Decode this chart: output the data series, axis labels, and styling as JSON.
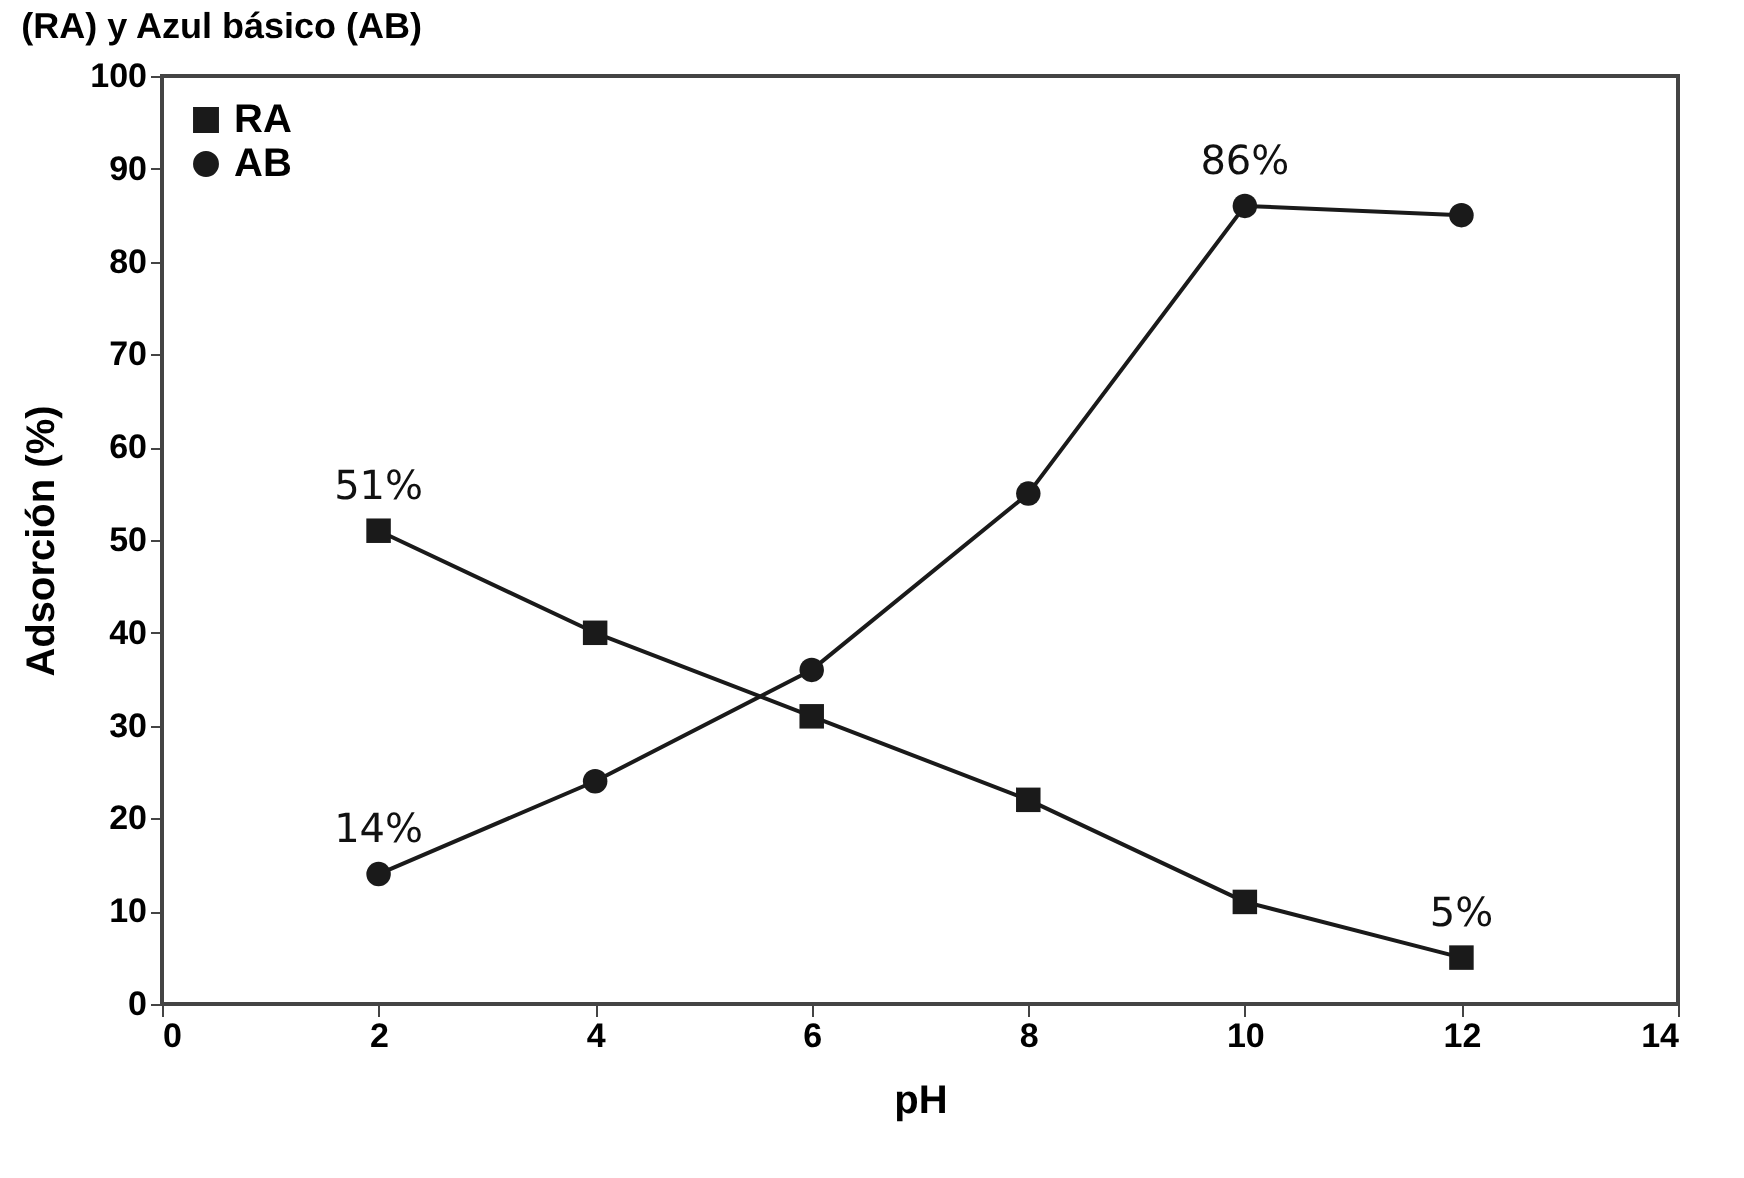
{
  "chart_data": {
    "type": "line",
    "title": "(RA) y Azul básico (AB)",
    "xlabel": "pH",
    "ylabel": "Adsorción (%)",
    "x": [
      2,
      4,
      6,
      8,
      10,
      12
    ],
    "series": [
      {
        "name": "RA",
        "color": "#1a1a1a",
        "marker": "square",
        "values": [
          51,
          40,
          31,
          22,
          11,
          5
        ]
      },
      {
        "name": "AB",
        "color": "#1a1a1a",
        "marker": "circle",
        "values": [
          14,
          24,
          36,
          55,
          86,
          85
        ]
      }
    ],
    "xlim": [
      0,
      14
    ],
    "xticks": [
      0,
      2,
      4,
      6,
      8,
      10,
      12,
      14
    ],
    "ylim": [
      0,
      100
    ],
    "yticks": [
      0,
      10,
      20,
      30,
      40,
      50,
      60,
      70,
      80,
      90,
      100
    ],
    "legend": "top left",
    "grid": false,
    "annotations": [
      {
        "text": "51%",
        "x": 2,
        "y": 51
      },
      {
        "text": "14%",
        "x": 2,
        "y": 14
      },
      {
        "text": "86%",
        "x": 10,
        "y": 86
      },
      {
        "text": "5%",
        "x": 12,
        "y": 5
      }
    ]
  }
}
